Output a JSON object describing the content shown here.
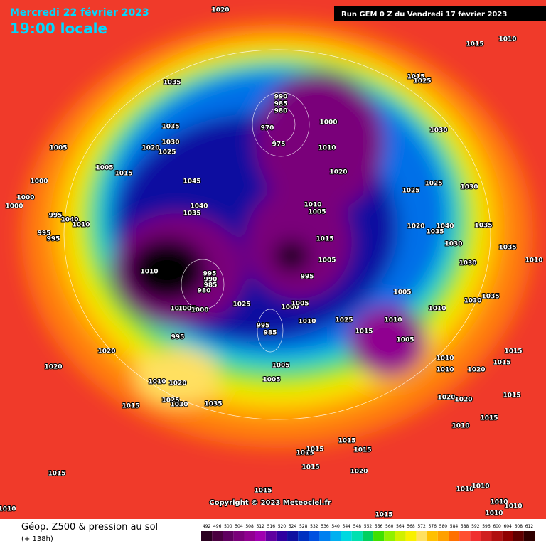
{
  "header": {
    "date": "Mercredi 22 février 2023",
    "time": "19:00 locale",
    "run": "Run GEM 0 Z du Vendredi 17 février 2023"
  },
  "copyright": "Copyright © 2023 Meteociel.fr",
  "footer": {
    "title": "Géop. Z500 & pression au sol",
    "lead": "(+ 138h)"
  },
  "colorbar": {
    "ticks": [
      492,
      496,
      500,
      504,
      508,
      512,
      516,
      520,
      524,
      528,
      532,
      536,
      540,
      544,
      548,
      552,
      556,
      560,
      564,
      568,
      572,
      576,
      580,
      584,
      588,
      592,
      596,
      600,
      604,
      608,
      612
    ],
    "colors": [
      "#2a0020",
      "#4a0040",
      "#600060",
      "#7a007a",
      "#900090",
      "#a000b0",
      "#6000a0",
      "#3000a0",
      "#1010a0",
      "#0030c0",
      "#0050e0",
      "#0080f0",
      "#00b0f0",
      "#00d8e0",
      "#00e0b0",
      "#00d060",
      "#40e000",
      "#90f000",
      "#d0f000",
      "#f8f000",
      "#ffe060",
      "#ffc000",
      "#ffa000",
      "#ff7000",
      "#ff5030",
      "#f03030",
      "#d02020",
      "#b01010",
      "#900000",
      "#600000",
      "#300000"
    ]
  },
  "isobar_labels": [
    1020,
    1015,
    1010,
    1035,
    1015,
    1025,
    990,
    985,
    980,
    970,
    1000,
    975,
    1010,
    1030,
    1035,
    1030,
    1020,
    1025,
    1005,
    1005,
    1015,
    1020,
    1045,
    1025,
    1025,
    1030,
    1000,
    1000,
    1000,
    1040,
    1035,
    1010,
    1005,
    995,
    1040,
    1010,
    995,
    995,
    1015,
    1020,
    1035,
    1040,
    1035,
    1030,
    1035,
    1005,
    1010,
    995,
    990,
    985,
    980,
    995,
    1030,
    1010,
    1025,
    1000,
    1005,
    1010,
    1005,
    1000,
    1005,
    1035,
    1010,
    1030,
    1010,
    1025,
    1010,
    995,
    985,
    995,
    1015,
    1005,
    1020,
    1015,
    1010,
    1010,
    1015,
    1020,
    1020,
    1005,
    1005,
    1010,
    1020,
    1025,
    1030,
    1035,
    1015,
    1020,
    1020,
    1015,
    1015,
    1010,
    1015,
    1015,
    1015,
    1015,
    1015,
    1020,
    1015,
    1010,
    1010,
    1015,
    1010,
    1010,
    1010,
    1015,
    1010
  ]
}
